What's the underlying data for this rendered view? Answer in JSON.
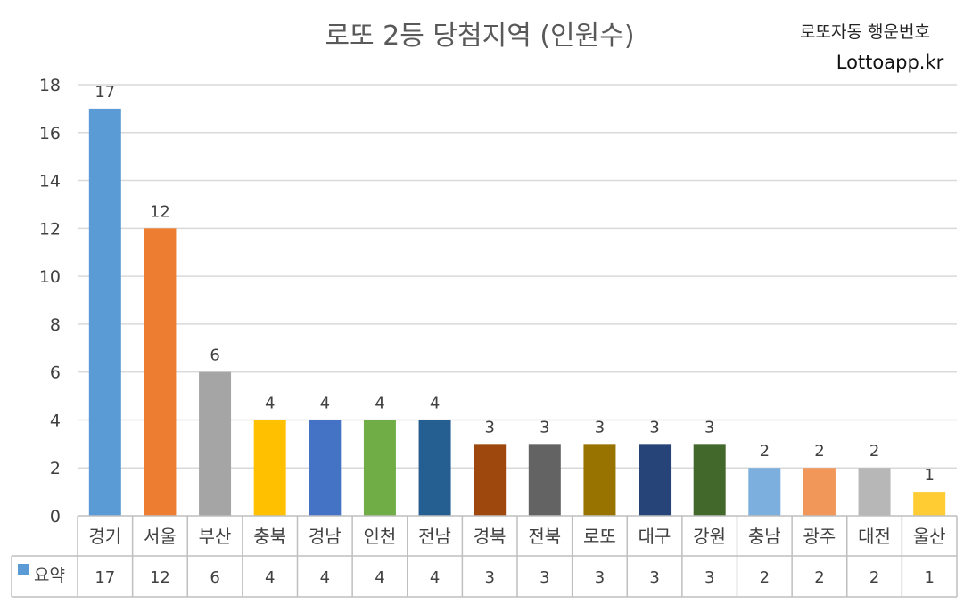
{
  "chart_data": {
    "type": "bar",
    "title": "로또 2등 당첨지역 (인원수)",
    "categories": [
      "경기",
      "서울",
      "부산",
      "충북",
      "경남",
      "인천",
      "전남",
      "경북",
      "전북",
      "로또",
      "대구",
      "강원",
      "충남",
      "광주",
      "대전",
      "울산"
    ],
    "series": [
      {
        "name": "요약",
        "values": [
          17,
          12,
          6,
          4,
          4,
          4,
          4,
          3,
          3,
          3,
          3,
          3,
          2,
          2,
          2,
          1
        ],
        "colors": [
          "#5B9BD5",
          "#ED7D31",
          "#A5A5A5",
          "#FFC000",
          "#4472C4",
          "#70AD47",
          "#255E91",
          "#9E480E",
          "#636363",
          "#997300",
          "#264478",
          "#43682B",
          "#7CAFDD",
          "#F1975A",
          "#B7B7B7",
          "#FFCD33"
        ]
      }
    ],
    "ylim": [
      0,
      18
    ],
    "yticks": [
      0,
      2,
      4,
      6,
      8,
      10,
      12,
      14,
      16,
      18
    ],
    "grid": true,
    "legend": "table-bottom-left",
    "data_table": true
  },
  "brand": {
    "line1": "로또자동 행운번호",
    "line2": "Lottoapp.kr"
  },
  "colors": {
    "gridline": "#D9D9D9",
    "table_border": "#BFBFBF",
    "legend_key": "#5B9BD5"
  }
}
